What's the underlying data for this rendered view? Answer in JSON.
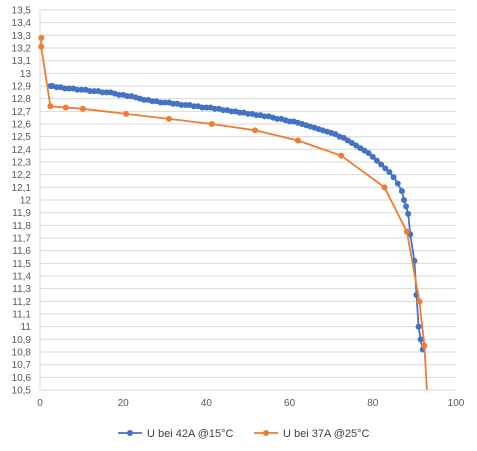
{
  "chart_data": {
    "type": "scatter",
    "title": "",
    "xlabel": "",
    "ylabel": "",
    "xlim": [
      0,
      100
    ],
    "ylim": [
      10.5,
      13.5
    ],
    "x_ticks": [
      0,
      20,
      40,
      60,
      80,
      100
    ],
    "y_ticks": [
      "10,5",
      "10,6",
      "10,7",
      "10,8",
      "10,9",
      "11",
      "11,1",
      "11,2",
      "11,3",
      "11,4",
      "11,5",
      "11,6",
      "11,7",
      "11,8",
      "11,9",
      "12",
      "12,1",
      "12,2",
      "12,3",
      "12,4",
      "12,5",
      "12,6",
      "12,7",
      "12,8",
      "12,9",
      "13",
      "13,1",
      "13,2",
      "13,3",
      "13,4",
      "13,5"
    ],
    "grid": "horizontal",
    "legend_position": "bottom",
    "series": [
      {
        "name": "U bei 42A @15°C",
        "color": "#4472c4",
        "x": [
          2.5,
          3,
          4,
          5,
          6,
          7,
          8,
          9,
          10,
          11,
          12,
          13,
          14,
          15,
          16,
          17,
          18,
          19,
          20,
          21,
          22,
          23,
          24,
          25,
          26,
          27,
          28,
          29,
          30,
          31,
          32,
          33,
          34,
          35,
          36,
          37,
          38,
          39,
          40,
          41,
          42,
          43,
          44,
          45,
          46,
          47,
          48,
          49,
          50,
          51,
          52,
          53,
          54,
          55,
          56,
          57,
          58,
          59,
          60,
          61,
          62,
          63,
          64,
          65,
          66,
          67,
          68,
          69,
          70,
          71,
          72,
          73,
          74,
          75,
          76,
          77,
          78,
          79,
          80,
          81,
          82,
          83,
          84,
          85,
          86,
          87,
          87.5,
          88,
          88.5,
          89,
          90,
          90.5,
          91,
          91.5,
          92
        ],
        "y": [
          12.9,
          12.9,
          12.89,
          12.89,
          12.88,
          12.88,
          12.88,
          12.87,
          12.87,
          12.87,
          12.86,
          12.86,
          12.86,
          12.85,
          12.85,
          12.85,
          12.84,
          12.83,
          12.83,
          12.82,
          12.82,
          12.81,
          12.8,
          12.79,
          12.79,
          12.78,
          12.78,
          12.77,
          12.77,
          12.77,
          12.76,
          12.76,
          12.75,
          12.75,
          12.75,
          12.74,
          12.74,
          12.73,
          12.73,
          12.73,
          12.72,
          12.72,
          12.71,
          12.71,
          12.7,
          12.7,
          12.69,
          12.69,
          12.68,
          12.68,
          12.67,
          12.67,
          12.66,
          12.66,
          12.65,
          12.64,
          12.64,
          12.63,
          12.62,
          12.62,
          12.61,
          12.6,
          12.59,
          12.58,
          12.57,
          12.56,
          12.55,
          12.54,
          12.53,
          12.52,
          12.5,
          12.49,
          12.47,
          12.45,
          12.43,
          12.41,
          12.39,
          12.37,
          12.34,
          12.31,
          12.28,
          12.25,
          12.22,
          12.18,
          12.13,
          12.07,
          12.0,
          11.95,
          11.89,
          11.73,
          11.52,
          11.25,
          11.0,
          10.9,
          10.82
        ]
      },
      {
        "name": "U bei 37A @25°C",
        "color": "#ed7d31",
        "x": [
          0.3,
          0.3,
          2.5,
          6.2,
          10.3,
          20.7,
          31,
          41.3,
          51.7,
          62,
          72.4,
          82.8,
          88.2,
          91.2,
          92.4,
          93
        ],
        "y": [
          13.28,
          13.21,
          12.74,
          12.73,
          12.72,
          12.68,
          12.64,
          12.6,
          12.55,
          12.47,
          12.35,
          12.1,
          11.75,
          11.2,
          10.85,
          10.5
        ]
      }
    ]
  }
}
